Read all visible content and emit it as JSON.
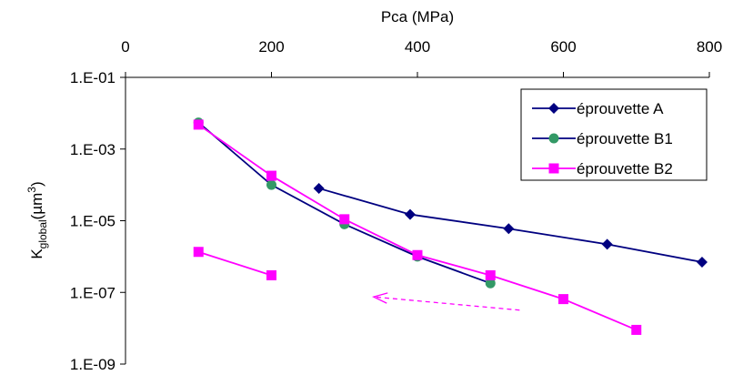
{
  "chart_data": {
    "type": "line",
    "xlabel": "Pca (MPa)",
    "ylabel": {
      "base": "K",
      "sub": "global",
      "unit_prefix": "(µm",
      "sup": "3",
      "unit_suffix": ")"
    },
    "xlim": [
      0,
      800
    ],
    "ylim": [
      1e-09,
      0.1
    ],
    "y_scale": "log",
    "x_axis_position": "top",
    "x_ticks": [
      0,
      200,
      400,
      600,
      800
    ],
    "x_tick_labels": [
      "0",
      "200",
      "400",
      "600",
      "800"
    ],
    "y_ticks": [
      0.1,
      0.001,
      1e-05,
      1e-07,
      1e-09
    ],
    "y_tick_labels": [
      "1.E-01",
      "1.E-03",
      "1.E-05",
      "1.E-07",
      "1.E-09"
    ],
    "grid": false,
    "legend_position": "top-right",
    "series": [
      {
        "name": "éprouvette A",
        "color": "#000080",
        "marker": "diamond",
        "segments": [
          [
            [
              265,
              8e-05
            ],
            [
              390,
              1.5e-05
            ],
            [
              525,
              6e-06
            ],
            [
              660,
              2.2e-06
            ],
            [
              790,
              7e-07
            ]
          ]
        ]
      },
      {
        "name": "éprouvette B1",
        "color": "#000080",
        "marker_color": "#339966",
        "marker": "circle",
        "segments": [
          [
            [
              100,
              0.0055
            ],
            [
              200,
              0.0001
            ],
            [
              300,
              8e-06
            ],
            [
              400,
              1e-06
            ],
            [
              500,
              1.8e-07
            ]
          ]
        ]
      },
      {
        "name": "éprouvette B2",
        "color": "#FF00FF",
        "marker": "square",
        "segments": [
          [
            [
              100,
              0.0048
            ],
            [
              200,
              0.00018
            ],
            [
              300,
              1.1e-05
            ],
            [
              400,
              1.1e-06
            ],
            [
              500,
              3e-07
            ],
            [
              600,
              6.5e-08
            ],
            [
              700,
              9e-09
            ]
          ],
          [
            [
              100,
              1.35e-06
            ],
            [
              200,
              3e-07
            ]
          ]
        ]
      }
    ],
    "annotations": [
      {
        "type": "dashed-arrow",
        "color": "#FF00FF",
        "from": [
          540,
          3.2e-08
        ],
        "to": [
          340,
          7.5e-08
        ]
      }
    ]
  }
}
